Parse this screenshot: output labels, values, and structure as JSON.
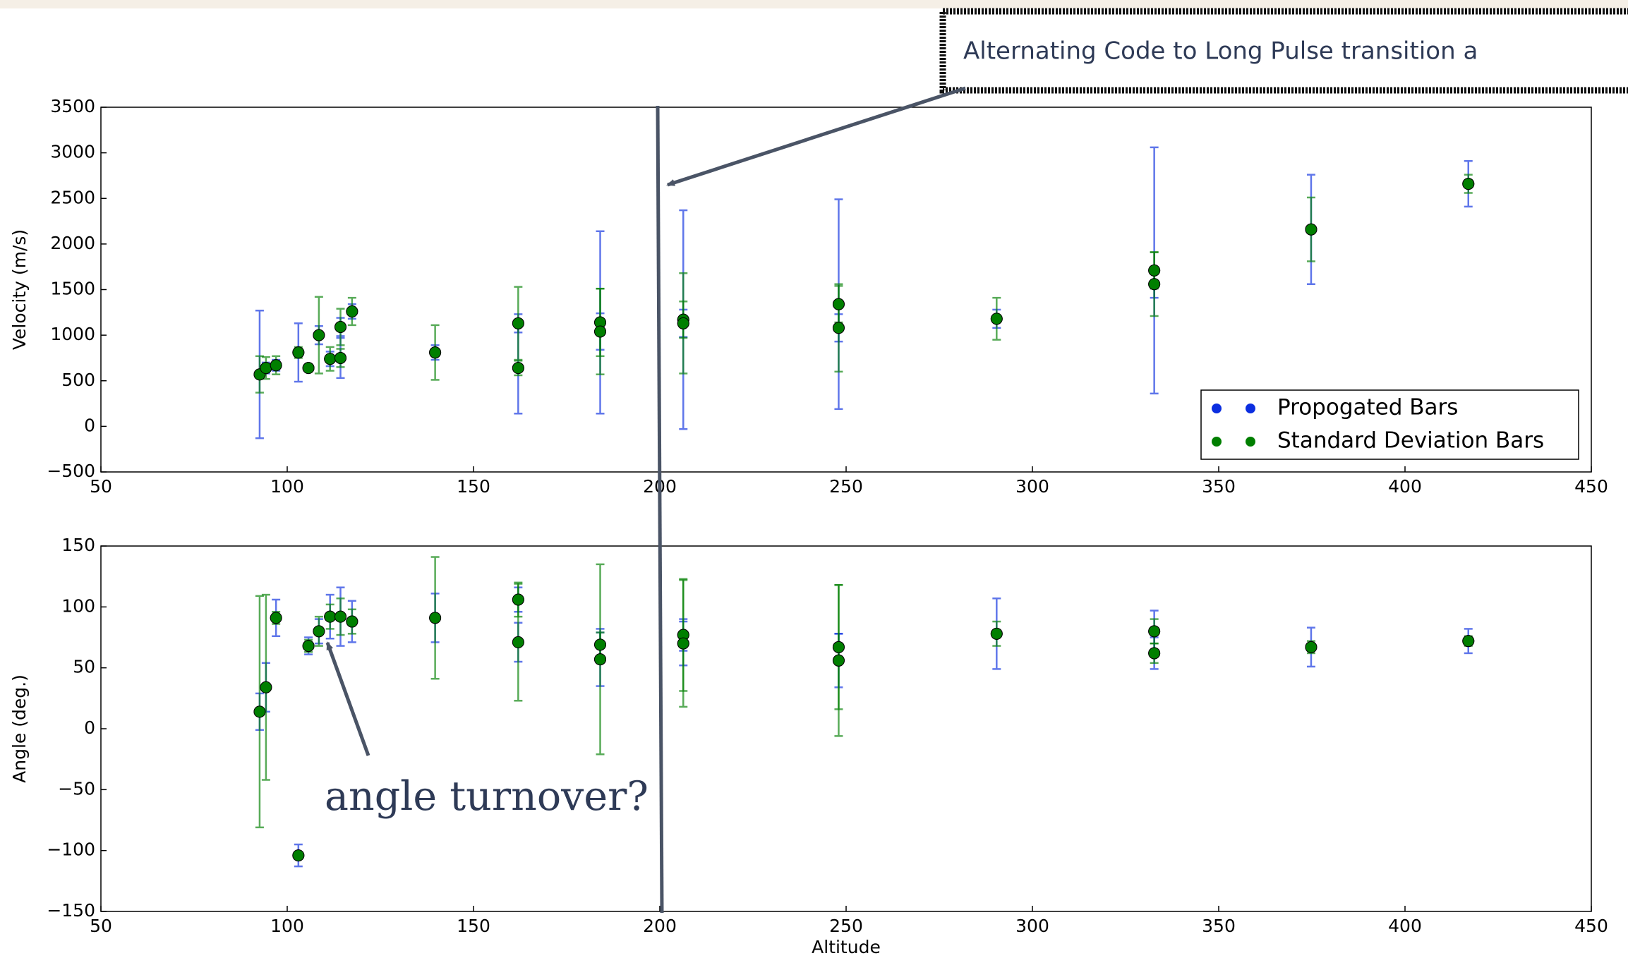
{
  "chart_data": [
    {
      "type": "errorbar",
      "ylabel": "Velocity (m/s)",
      "annotation": "Alternating Code to Long Pulse transition a",
      "legend": "lower right",
      "x": [
        92.6,
        94.3,
        97,
        103,
        105.7,
        108.5,
        111.5,
        114.3,
        114.3,
        117.4,
        139.7,
        162,
        162,
        184,
        184,
        206.3,
        206.3,
        248,
        248,
        290.4,
        332.7,
        332.7,
        374.8,
        417
      ],
      "series": [
        {
          "name": "Propogated Bars",
          "color": "#0b2ee0",
          "values": [
            570,
            640,
            670,
            810,
            640,
            1000,
            740,
            750,
            1090,
            1260,
            810,
            1130,
            640,
            1140,
            1040,
            1170,
            1130,
            1340,
            1080,
            1180,
            1710,
            1560,
            2160,
            2660
          ],
          "errors": [
            700,
            60,
            60,
            320,
            30,
            100,
            80,
            220,
            100,
            80,
            80,
            100,
            500,
            1000,
            200,
            1200,
            150,
            1150,
            150,
            100,
            1350,
            150,
            600,
            250
          ]
        },
        {
          "name": "Standard Deviation Bars",
          "color": "#007f00",
          "values": [
            570,
            640,
            670,
            810,
            640,
            1000,
            740,
            750,
            1090,
            1260,
            810,
            1130,
            640,
            1140,
            1040,
            1170,
            1130,
            1340,
            1080,
            1180,
            1710,
            1560,
            2160,
            2660
          ],
          "errors": [
            200,
            120,
            100,
            60,
            30,
            420,
            130,
            100,
            200,
            150,
            300,
            400,
            80,
            370,
            470,
            200,
            550,
            200,
            480,
            230,
            200,
            350,
            350,
            100
          ]
        }
      ],
      "xlim": [
        50,
        450
      ],
      "xticks": [
        50,
        100,
        150,
        200,
        250,
        300,
        350,
        400,
        450
      ],
      "ylim": [
        -500,
        3500
      ],
      "yticks": [
        {
          "value": -500,
          "label": "−500"
        },
        0,
        500,
        1000,
        1500,
        2000,
        2500,
        3000,
        3500
      ]
    },
    {
      "type": "errorbar",
      "ylabel": "Angle (deg.)",
      "xlabel": "Altitude",
      "annotation": "angle turnover?",
      "x": [
        92.6,
        94.3,
        97,
        103,
        105.7,
        108.5,
        111.5,
        114.3,
        117.4,
        139.7,
        162,
        162,
        184,
        184,
        206.3,
        206.3,
        248,
        248,
        290.4,
        332.7,
        332.7,
        374.8,
        417
      ],
      "series": [
        {
          "name": "Propogated Bars",
          "color": "#0b2ee0",
          "values": [
            14,
            34,
            91,
            -104,
            68,
            80,
            92,
            92,
            88,
            91,
            106,
            71,
            69,
            57,
            77,
            70,
            67,
            56,
            78,
            80,
            62,
            67,
            72
          ],
          "errors": [
            15,
            20,
            15,
            9,
            7,
            10,
            18,
            24,
            17,
            20,
            10,
            16,
            13,
            22,
            13,
            18,
            11,
            22,
            29,
            17,
            13,
            16,
            10
          ]
        },
        {
          "name": "Standard Deviation Bars",
          "color": "#007f00",
          "values": [
            14,
            34,
            91,
            -104,
            68,
            80,
            92,
            92,
            88,
            91,
            106,
            71,
            69,
            57,
            77,
            70,
            67,
            56,
            78,
            80,
            62,
            67,
            72
          ],
          "errors": [
            95,
            76,
            5,
            2,
            5,
            12,
            10,
            15,
            10,
            50,
            14,
            48,
            10,
            78,
            46,
            52,
            51,
            62,
            10,
            10,
            8,
            5,
            4
          ]
        }
      ],
      "xlim": [
        50,
        450
      ],
      "xticks": [
        50,
        100,
        150,
        200,
        250,
        300,
        350,
        400,
        450
      ],
      "ylim": [
        -150,
        150
      ],
      "yticks": [
        {
          "value": -150,
          "label": "−150"
        },
        {
          "value": -100,
          "label": "−100"
        },
        {
          "value": -50,
          "label": "−50"
        },
        0,
        50,
        100,
        150
      ]
    }
  ]
}
